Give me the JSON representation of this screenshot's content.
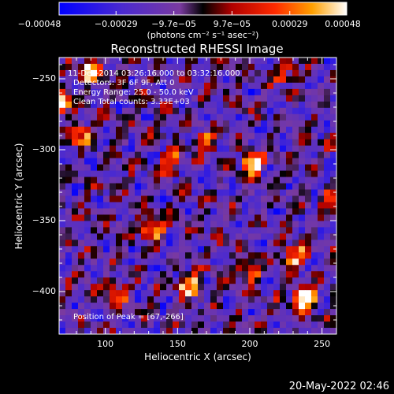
{
  "chart_data": {
    "type": "heatmap",
    "title": "Reconstructed RHESSI Image",
    "xlabel": "Heliocentric X (arcsec)",
    "ylabel": "Heliocentric Y (arcsec)",
    "xlim": [
      68,
      260
    ],
    "ylim": [
      -430,
      -235
    ],
    "x_ticks": [
      100,
      150,
      200,
      250
    ],
    "y_ticks": [
      -250,
      -300,
      -350,
      -400
    ],
    "x_tick_labels": [
      "100",
      "150",
      "200",
      "250"
    ],
    "y_tick_labels": [
      "−250",
      "−300",
      "−350",
      "−400"
    ],
    "colorbar": {
      "min": -0.00048,
      "max": 0.00048,
      "tick_values": [
        -0.00048,
        -0.00029,
        -9.7e-05,
        9.7e-05,
        0.00029,
        0.00048
      ],
      "tick_labels": [
        "−0.00048",
        "−0.00029",
        "−9.7e−05",
        "9.7e−05",
        "0.00029",
        "0.00048"
      ],
      "unit_label": "(photons cm⁻² s⁻¹ asec⁻²)"
    },
    "annotations": {
      "time": "11-Dec-2014 03:26:16.000 to 03:32:16.000",
      "detectors": "Detectors: 3F 6F 9F, Att 0",
      "energy": "Energy Range: 25.0 - 50.0 keV",
      "clean": "Clean    Total counts: 3.33E+03",
      "peak": "Position of Peak = [67,-266]"
    },
    "sources": [
      {
        "x": 67,
        "y": -266,
        "intensity": 1.0
      },
      {
        "x": 90,
        "y": -245,
        "intensity": 0.8
      },
      {
        "x": 82,
        "y": -290,
        "intensity": 0.65
      },
      {
        "x": 133,
        "y": -355,
        "intensity": 0.7
      },
      {
        "x": 145,
        "y": -310,
        "intensity": 0.55
      },
      {
        "x": 158,
        "y": -395,
        "intensity": 0.8
      },
      {
        "x": 168,
        "y": -295,
        "intensity": 0.5
      },
      {
        "x": 202,
        "y": -310,
        "intensity": 0.85
      },
      {
        "x": 200,
        "y": -385,
        "intensity": 0.55
      },
      {
        "x": 232,
        "y": -375,
        "intensity": 0.7
      },
      {
        "x": 238,
        "y": -405,
        "intensity": 0.9
      },
      {
        "x": 255,
        "y": -335,
        "intensity": 0.45
      },
      {
        "x": 108,
        "y": -400,
        "intensity": 0.45
      },
      {
        "x": 225,
        "y": -245,
        "intensity": 0.45
      }
    ]
  },
  "timestamp": "20-May-2022 02:46"
}
